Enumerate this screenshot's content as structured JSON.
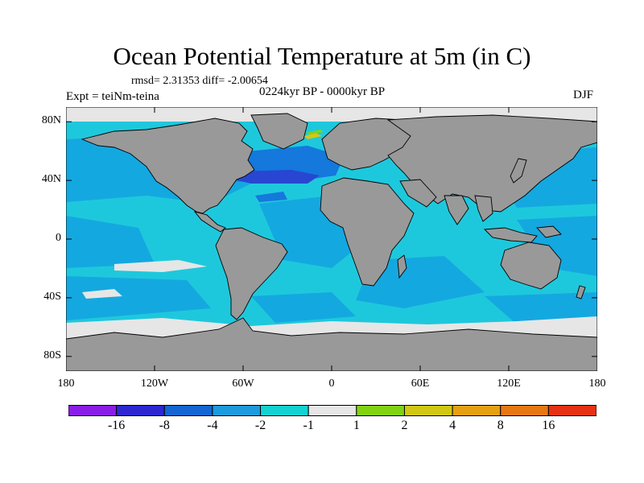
{
  "title": "Ocean Potential Temperature at 5m (in C)",
  "stats": "rmsd= 2.31353 diff= -2.00654",
  "left_label": "Expt = teiNm-teina",
  "center_label": "0224kyr BP - 0000kyr BP",
  "right_label": "DJF",
  "lat_labels": [
    "80N",
    "40N",
    "0",
    "40S",
    "80S"
  ],
  "lat_values": [
    80,
    40,
    0,
    -40,
    -80
  ],
  "lon_labels": [
    "180",
    "120W",
    "60W",
    "0",
    "60E",
    "120E",
    "180"
  ],
  "lon_values": [
    -180,
    -120,
    -60,
    0,
    60,
    120,
    180
  ],
  "colorbar": {
    "colors": [
      "#8a1ee6",
      "#2d28d2",
      "#1466d2",
      "#1e9bdc",
      "#14d2d2",
      "#e6e6e6",
      "#82d214",
      "#d2c814",
      "#e6a014",
      "#e67814",
      "#e63214"
    ],
    "labels": [
      "-16",
      "-8",
      "-4",
      "-2",
      "-1",
      "1",
      "2",
      "4",
      "8",
      "16"
    ]
  },
  "colors": {
    "land": "#999999",
    "ocean_base": "#1ec8dc",
    "ocean_cool": "#14a8e0",
    "ocean_med": "#1478dc",
    "ocean_strong": "#2846d2",
    "ice": "#e6e6e6"
  }
}
